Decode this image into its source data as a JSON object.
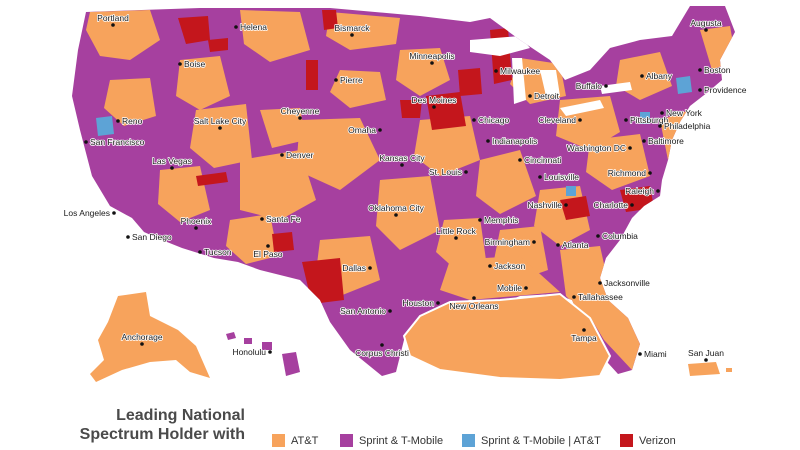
{
  "colors": {
    "att": "#f7a35c",
    "sprint_tmobile": "#a6409f",
    "shared": "#5da3d6",
    "verizon": "#c4161c",
    "border": "#ffffff",
    "water": "#ffffff"
  },
  "caption": {
    "line1": "Leading National",
    "line2": "Spectrum Holder with"
  },
  "legend": [
    {
      "key": "att",
      "label": "AT&T"
    },
    {
      "key": "sprint_tmobile",
      "label": "Sprint & T-Mobile"
    },
    {
      "key": "shared",
      "label": "Sprint & T-Mobile | AT&T"
    },
    {
      "key": "verizon",
      "label": "Verizon"
    }
  ],
  "cities": [
    "Portland",
    "Helena",
    "Bismarck",
    "Minneapolis",
    "Augusta",
    "Boise",
    "Milwaukee",
    "Boston",
    "Albany",
    "Buffalo",
    "Providence",
    "Pierre",
    "Detroit",
    "New York",
    "Reno",
    "Des Moines",
    "Salt Lake City",
    "Cheyenne",
    "Chicago",
    "Cleveland",
    "Pittsburgh",
    "Philadelphia",
    "San Francisco",
    "Omaha",
    "Baltimore",
    "Indianapolis",
    "Washington DC",
    "Denver",
    "Cincinnati",
    "Las Vegas",
    "Kansas City",
    "St. Louis",
    "Louisville",
    "Richmond",
    "Raleigh",
    "Los Angeles",
    "Santa Fe",
    "Nashville",
    "Charlotte",
    "Oklahoma City",
    "Memphis",
    "San Diego",
    "Phoenix",
    "Little Rock",
    "Birmingham",
    "Atlanta",
    "Columbia",
    "Tucson",
    "Dallas",
    "Jackson",
    "El Paso",
    "Jacksonville",
    "Mobile",
    "Tallahassee",
    "New Orleans",
    "Houston",
    "San Antonio",
    "Anchorage",
    "Honolulu",
    "Tampa",
    "Corpus Christi",
    "Miami",
    "San Juan"
  ]
}
